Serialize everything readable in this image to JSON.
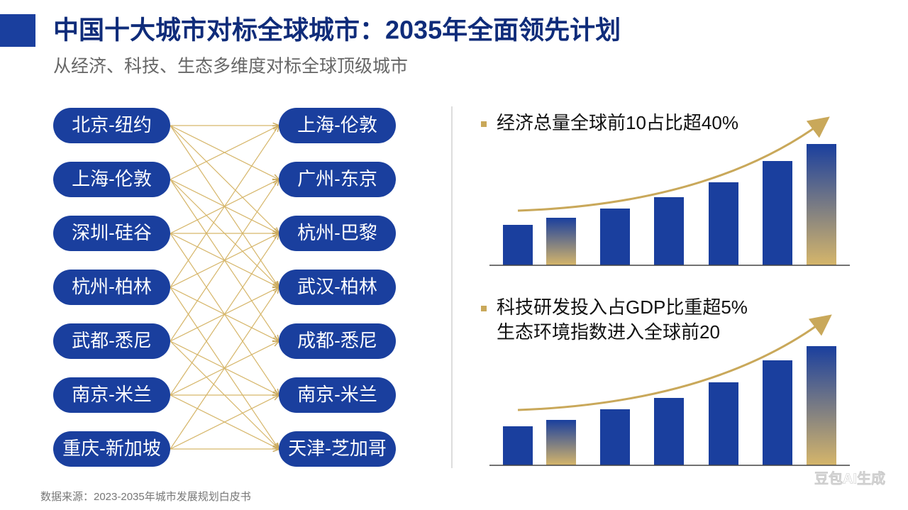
{
  "header": {
    "title": "中国十大城市对标全球城市：2035年全面领先计划",
    "subtitle": "从经济、科技、生态多维度对标全球顶级城市"
  },
  "left_cities": [
    "北京-纽约",
    "上海-伦敦",
    "深圳-硅谷",
    "杭州-柏林",
    "武都-悉尼",
    "南京-米兰",
    "重庆-新加坡"
  ],
  "right_cities": [
    "上海-伦敦",
    "广州-东京",
    "杭州-巴黎",
    "武汉-柏林",
    "成都-悉尼",
    "南京-米兰",
    "天津-芝加哥"
  ],
  "charts": [
    {
      "lines": [
        "经济总量全球前10占比超40%"
      ],
      "values": [
        57,
        67,
        80,
        96,
        117,
        147,
        171
      ]
    },
    {
      "lines": [
        "科技研发投入占GDP比重超5%",
        "生态环境指数进入全球前20"
      ],
      "values": [
        55,
        64,
        79,
        95,
        117,
        148,
        168
      ]
    }
  ],
  "footer": {
    "source": "数据来源：2023-2035年城市发展规划白皮书",
    "watermark": "豆包AI生成"
  }
}
